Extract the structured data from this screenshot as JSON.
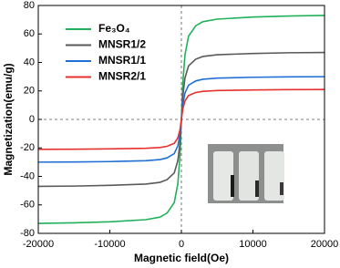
{
  "chart_data": {
    "type": "line",
    "x_label": "Magnetic field(Oe)",
    "y_label": "Magnetization(emu/g)",
    "x": [
      -20000,
      -15000,
      -10000,
      -5000,
      -3000,
      -2000,
      -1000,
      -500,
      -200,
      0,
      200,
      500,
      1000,
      2000,
      3000,
      5000,
      10000,
      15000,
      20000
    ],
    "series": [
      {
        "name": "Fe₃O₄",
        "color": "#22b05a",
        "values": [
          -73,
          -72.6,
          -71.9,
          -70.4,
          -68.6,
          -65.7,
          -58.4,
          -45.3,
          -25.6,
          0,
          25.6,
          45.3,
          58.4,
          65.7,
          68.6,
          70.4,
          71.9,
          72.6,
          73
        ]
      },
      {
        "name": "MNSR1/2",
        "color": "#5a5a5a",
        "values": [
          -47,
          -46.8,
          -46.3,
          -45.4,
          -44.2,
          -42.3,
          -37.6,
          -29.1,
          -16.5,
          0,
          16.5,
          29.1,
          37.6,
          42.3,
          44.2,
          45.4,
          46.3,
          46.8,
          47
        ]
      },
      {
        "name": "MNSR1/1",
        "color": "#1f6fd6",
        "values": [
          -30,
          -29.9,
          -29.6,
          -29,
          -28.2,
          -27,
          -24,
          -18.6,
          -10.5,
          0,
          10.5,
          18.6,
          24,
          27,
          28.2,
          29,
          29.6,
          29.9,
          30
        ]
      },
      {
        "name": "MNSR2/1",
        "color": "#e5312f",
        "values": [
          -21,
          -20.9,
          -20.7,
          -20.3,
          -19.7,
          -18.9,
          -16.8,
          -13,
          -7.4,
          0,
          7.4,
          13,
          16.8,
          18.9,
          19.7,
          20.3,
          20.7,
          20.9,
          21
        ]
      }
    ],
    "xlim": [
      -20000,
      20000
    ],
    "xticks": [
      -20000,
      -10000,
      0,
      10000,
      20000
    ],
    "ylim": [
      -80,
      80
    ],
    "yticks": [
      -80,
      -60,
      -40,
      -20,
      0,
      20,
      40,
      60,
      80
    ]
  }
}
